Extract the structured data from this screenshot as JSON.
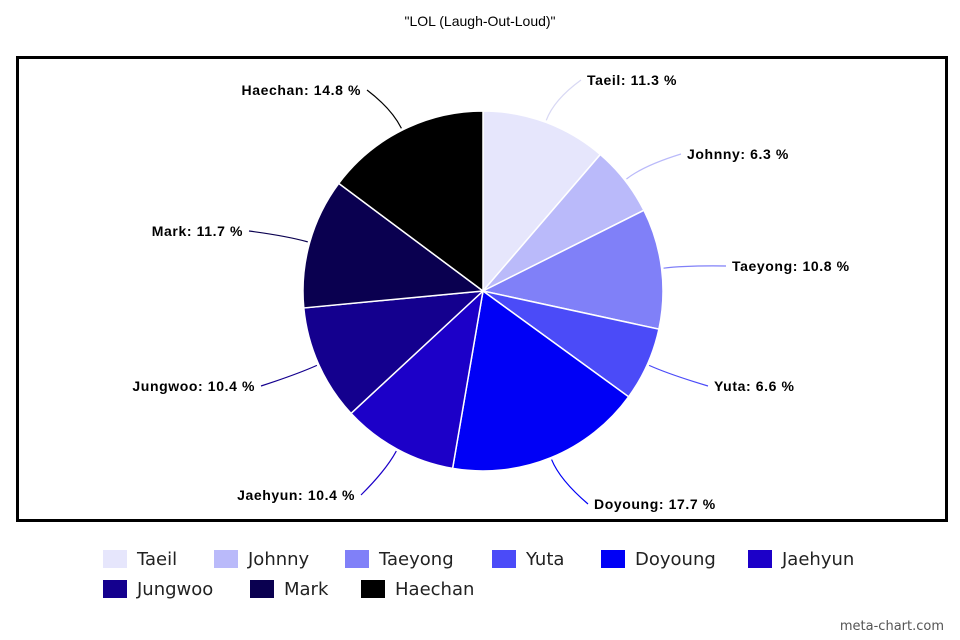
{
  "chart_data": {
    "type": "pie",
    "title": "\"LOL (Laugh-Out-Loud)\"",
    "categories": [
      "Taeil",
      "Johnny",
      "Taeyong",
      "Yuta",
      "Doyoung",
      "Jaehyun",
      "Jungwoo",
      "Mark",
      "Haechan"
    ],
    "values": [
      11.3,
      6.3,
      10.8,
      6.6,
      17.7,
      10.4,
      10.4,
      11.7,
      14.8
    ],
    "value_suffix": " %",
    "colors": [
      "#e6e6fc",
      "#babafa",
      "#8080f8",
      "#4b4bf8",
      "#0000f6",
      "#1c00c8",
      "#14008e",
      "#0a0050",
      "#000000"
    ],
    "legend": {
      "placement": "bottom"
    },
    "slice_labels": [
      "Taeil: 11.3 %",
      "Johnny: 6.3 %",
      "Taeyong: 10.8 %",
      "Yuta: 6.6 %",
      "Doyoung: 17.7 %",
      "Jaehyun: 10.4 %",
      "Jungwoo: 10.4 %",
      "Mark: 11.7 %",
      "Haechan: 14.8 %"
    ]
  },
  "watermark": "meta-chart.com"
}
